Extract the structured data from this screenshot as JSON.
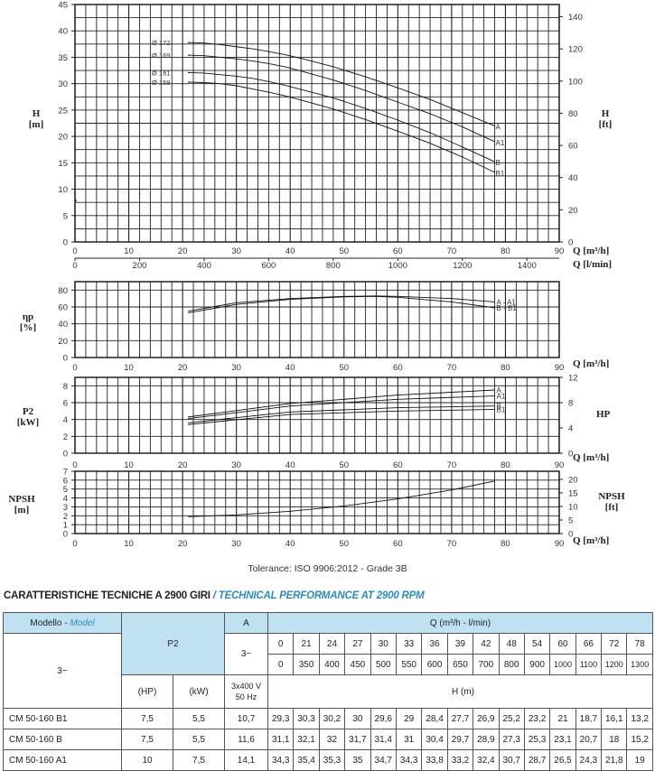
{
  "chart_data": [
    {
      "type": "line",
      "title": "Head curves",
      "xlabel": "Q [m³/h]",
      "xlabel2": "Q [l/min]",
      "ylabel": "H [m]",
      "ylabel_right": "H [ft]",
      "xlim": [
        0,
        90
      ],
      "ylim": [
        0,
        45
      ],
      "x_ticks": [
        0,
        10,
        20,
        30,
        40,
        50,
        60,
        70,
        80,
        90
      ],
      "x2_ticks": [
        0,
        200,
        400,
        600,
        800,
        1000,
        1200,
        1400
      ],
      "y_ticks": [
        0,
        5,
        10,
        15,
        20,
        25,
        30,
        35,
        40,
        45
      ],
      "y_right_ticks": [
        0,
        20,
        40,
        60,
        80,
        100,
        120,
        140
      ],
      "grid": true,
      "diameter_labels": [
        "Ø 172",
        "Ø 169",
        "Ø 161",
        "Ø 159"
      ],
      "series": [
        {
          "name": "A",
          "diameter": "Ø 172",
          "x": [
            21,
            24,
            27,
            30,
            33,
            36,
            39,
            42,
            48,
            54,
            60,
            66,
            72,
            78
          ],
          "values": [
            37.8,
            37.7,
            37.4,
            37.0,
            36.6,
            36.1,
            35.5,
            34.8,
            33.2,
            31.3,
            29.2,
            27.0,
            24.5,
            22.0
          ]
        },
        {
          "name": "A1",
          "diameter": "Ø 169",
          "x": [
            21,
            24,
            27,
            30,
            33,
            36,
            39,
            42,
            48,
            54,
            60,
            66,
            72,
            78
          ],
          "values": [
            35.4,
            35.3,
            35,
            34.7,
            34.3,
            33.8,
            33.2,
            32.4,
            30.7,
            28.7,
            26.5,
            24.3,
            21.8,
            19
          ]
        },
        {
          "name": "B",
          "diameter": "Ø 161",
          "x": [
            21,
            24,
            27,
            30,
            33,
            36,
            39,
            42,
            48,
            54,
            60,
            66,
            72,
            78
          ],
          "values": [
            32.1,
            32,
            31.7,
            31.4,
            31,
            30.4,
            29.7,
            28.9,
            27.3,
            25.3,
            23.1,
            20.7,
            18,
            15.2
          ]
        },
        {
          "name": "B1",
          "diameter": "Ø 159",
          "x": [
            21,
            24,
            27,
            30,
            33,
            36,
            39,
            42,
            48,
            54,
            60,
            66,
            72,
            78
          ],
          "values": [
            30.3,
            30.2,
            30,
            29.6,
            29,
            28.4,
            27.7,
            26.9,
            25.2,
            23.2,
            21,
            18.7,
            16.1,
            13.2
          ]
        }
      ]
    },
    {
      "type": "line",
      "title": "Efficiency",
      "xlabel": "Q [m³/h]",
      "ylabel": "ηp [%]",
      "xlim": [
        0,
        90
      ],
      "ylim": [
        0,
        90
      ],
      "x_ticks": [
        0,
        10,
        20,
        30,
        40,
        50,
        60,
        70,
        80,
        90
      ],
      "y_ticks": [
        0,
        20,
        40,
        60,
        80
      ],
      "grid": true,
      "series": [
        {
          "name": "A - A1",
          "x": [
            21,
            30,
            40,
            50,
            56,
            60,
            70,
            78
          ],
          "values": [
            55,
            65,
            70,
            72.5,
            73,
            72.5,
            70,
            66
          ]
        },
        {
          "name": "B - B1",
          "x": [
            21,
            30,
            40,
            50,
            56,
            60,
            70,
            78
          ],
          "values": [
            53,
            63,
            69,
            72,
            72.5,
            71.5,
            66,
            59
          ]
        }
      ]
    },
    {
      "type": "line",
      "title": "Power",
      "xlabel": "Q [m³/h]",
      "ylabel": "P2 [kW]",
      "ylabel_right": "HP",
      "xlim": [
        0,
        90
      ],
      "ylim": [
        0,
        9
      ],
      "x_ticks": [
        0,
        10,
        20,
        30,
        40,
        50,
        60,
        70,
        80,
        90
      ],
      "y_ticks": [
        0,
        2,
        4,
        6,
        8
      ],
      "y_right_ticks": [
        0,
        4,
        8,
        12
      ],
      "grid": true,
      "series": [
        {
          "name": "A",
          "x": [
            21,
            40,
            60,
            78
          ],
          "values": [
            4.3,
            5.9,
            6.9,
            7.5
          ]
        },
        {
          "name": "A1",
          "x": [
            21,
            40,
            60,
            78
          ],
          "values": [
            4.1,
            5.6,
            6.4,
            6.8
          ]
        },
        {
          "name": "B",
          "x": [
            21,
            40,
            60,
            78
          ],
          "values": [
            3.6,
            4.9,
            5.4,
            5.6
          ]
        },
        {
          "name": "B1",
          "x": [
            21,
            40,
            60,
            78
          ],
          "values": [
            3.4,
            4.6,
            5.0,
            5.2
          ]
        }
      ]
    },
    {
      "type": "line",
      "title": "NPSH",
      "xlabel": "Q [m³/h]",
      "ylabel": "NPSH [m]",
      "ylabel_right": "NPSH [ft]",
      "xlim": [
        0,
        90
      ],
      "ylim": [
        0,
        7
      ],
      "x_ticks": [
        0,
        10,
        20,
        30,
        40,
        50,
        60,
        70,
        80,
        90
      ],
      "y_ticks": [
        0,
        1,
        2,
        3,
        4,
        5,
        6,
        7
      ],
      "y_right_ticks": [
        0,
        5,
        10,
        15,
        20
      ],
      "grid": true,
      "series": [
        {
          "name": "NPSH",
          "x": [
            21,
            30,
            40,
            50,
            60,
            70,
            78
          ],
          "values": [
            1.9,
            2.1,
            2.5,
            3.1,
            3.9,
            4.9,
            5.9
          ]
        }
      ]
    }
  ],
  "labels": {
    "h_m": [
      "H",
      "[m]"
    ],
    "h_ft": [
      "H",
      "[ft]"
    ],
    "q_m3h": "Q [m³/h]",
    "q_lmin": "Q [l/min]",
    "eta": [
      "ηp",
      "[%]"
    ],
    "p2": [
      "P2",
      "[kW]"
    ],
    "hp": "HP",
    "npsh_m": [
      "NPSH",
      "[m]"
    ],
    "npsh_ft": [
      "NPSH",
      "[ft]"
    ]
  },
  "tolerance": "Tolerance: ISO 9906:2012 - Grade 3B",
  "section": {
    "title_it": "CARATTERISTICHE TECNICHE A 2900 GIRI",
    "title_en": "/ TECHNICAL PERFORMANCE AT 2900 RPM"
  },
  "table": {
    "model_label": "Modello - ",
    "model_label_en": "Model",
    "phase": "3~",
    "p2_label": "P2",
    "a_label": "A",
    "a_phase": "3~",
    "hp_label": "(HP)",
    "kw_label": "(kW)",
    "voltage": "3x400 V",
    "freq": "50 Hz",
    "q_label": "Q (m³/h - l/min)",
    "h_label": "H (m)",
    "q_m3h": [
      "0",
      "21",
      "24",
      "27",
      "30",
      "33",
      "36",
      "39",
      "42",
      "48",
      "54",
      "60",
      "66",
      "72",
      "78"
    ],
    "q_lmin": [
      "0",
      "350",
      "400",
      "450",
      "500",
      "550",
      "600",
      "650",
      "700",
      "800",
      "900",
      "1000",
      "1100",
      "1200",
      "1300"
    ],
    "rows": [
      {
        "model": "CM 50-160 B1",
        "hp": "7,5",
        "kw": "5,5",
        "amps": "10,7",
        "h": [
          "29,3",
          "30,3",
          "30,2",
          "30",
          "29,6",
          "29",
          "28,4",
          "27,7",
          "26,9",
          "25,2",
          "23,2",
          "21",
          "18,7",
          "16,1",
          "13,2"
        ]
      },
      {
        "model": "CM 50-160 B",
        "hp": "7,5",
        "kw": "5,5",
        "amps": "11,6",
        "h": [
          "31,1",
          "32,1",
          "32",
          "31,7",
          "31,4",
          "31",
          "30,4",
          "29,7",
          "28,9",
          "27,3",
          "25,3",
          "23,1",
          "20,7",
          "18",
          "15,2"
        ]
      },
      {
        "model": "CM 50-160 A1",
        "hp": "10",
        "kw": "7,5",
        "amps": "14,1",
        "h": [
          "34,3",
          "35,4",
          "35,3",
          "35",
          "34,7",
          "34,3",
          "33,8",
          "33,2",
          "32,4",
          "30,7",
          "28,7",
          "26,5",
          "24,3",
          "21,8",
          "19"
        ]
      }
    ]
  },
  "colors": {
    "header_bg": "#bfe1f2",
    "accent": "#2a8fb8",
    "grid": "#222222"
  }
}
